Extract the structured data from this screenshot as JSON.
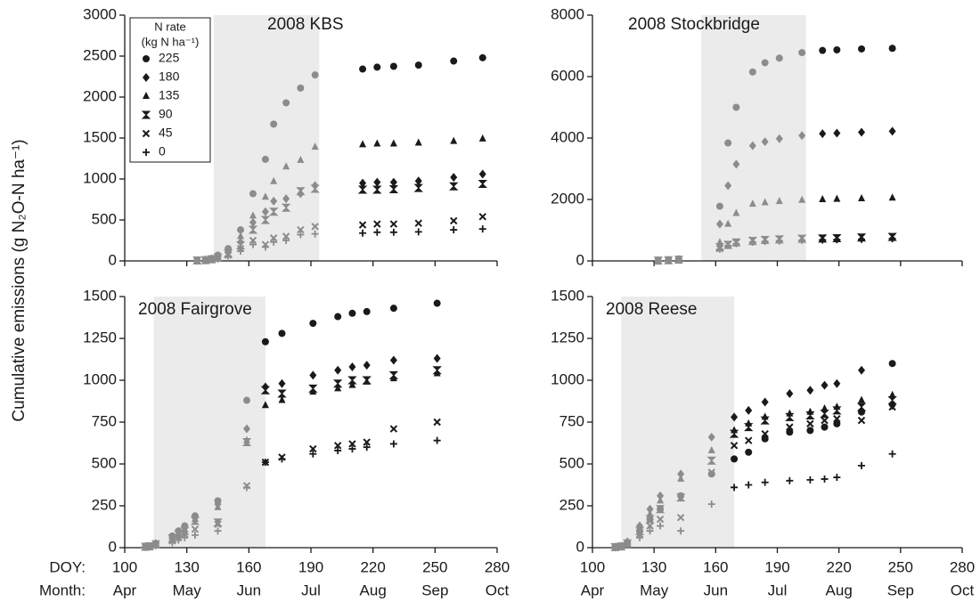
{
  "y_label": "Cumulative emissions (g N₂O-N ha⁻¹)",
  "row_labels": [
    "DOY:",
    "Month:"
  ],
  "month_labels": [
    "Apr",
    "May",
    "Jun",
    "Jul",
    "Aug",
    "Sep",
    "Oct"
  ],
  "legend": {
    "title": [
      "N rate",
      "(kg N ha⁻¹)"
    ],
    "names": [
      "225",
      "180",
      "135",
      "90",
      "45",
      "0"
    ],
    "markers": [
      "circle",
      "diamond",
      "triangle",
      "bowtie",
      "x",
      "plus"
    ]
  },
  "marker_color": "#1a1a1a",
  "shade_marker_color": "#8c8c8c",
  "shade_color": "#ebebeb",
  "chart_data": [
    {
      "type": "scatter",
      "title": "2008 KBS",
      "xlim": [
        100,
        280
      ],
      "xticks": [
        100,
        130,
        160,
        190,
        220,
        250,
        280
      ],
      "ylim": [
        0,
        3000
      ],
      "yticks": [
        0,
        500,
        1000,
        1500,
        2000,
        2500,
        3000
      ],
      "shade": [
        143,
        194
      ],
      "x": [
        135,
        139,
        142,
        145,
        150,
        156,
        162,
        168,
        172,
        178,
        185,
        192,
        215,
        222,
        230,
        242,
        259,
        273
      ],
      "series": [
        {
          "values": [
            5,
            15,
            30,
            70,
            150,
            380,
            820,
            1240,
            1670,
            1930,
            2110,
            2270,
            2342,
            2365,
            2375,
            2390,
            2440,
            2480
          ]
        },
        {
          "values": [
            5,
            10,
            25,
            50,
            110,
            230,
            470,
            600,
            730,
            760,
            820,
            920,
            950,
            960,
            960,
            975,
            1020,
            1060
          ]
        },
        {
          "values": [
            5,
            12,
            28,
            60,
            130,
            300,
            550,
            780,
            970,
            1150,
            1230,
            1390,
            1420,
            1430,
            1430,
            1440,
            1460,
            1490
          ]
        },
        {
          "values": [
            5,
            10,
            20,
            40,
            90,
            190,
            380,
            500,
            600,
            650,
            850,
            880,
            870,
            870,
            875,
            890,
            910,
            940
          ]
        },
        {
          "values": [
            5,
            8,
            15,
            30,
            70,
            150,
            250,
            200,
            280,
            300,
            380,
            420,
            440,
            450,
            450,
            460,
            490,
            540
          ]
        },
        {
          "values": [
            5,
            8,
            15,
            25,
            60,
            120,
            200,
            170,
            230,
            250,
            320,
            330,
            340,
            350,
            350,
            355,
            380,
            390
          ]
        }
      ]
    },
    {
      "type": "scatter",
      "title": "2008 Stockbridge",
      "xlim": [
        100,
        280
      ],
      "xticks": [
        100,
        130,
        160,
        190,
        220,
        250,
        280
      ],
      "ylim": [
        0,
        8000
      ],
      "yticks": [
        0,
        2000,
        4000,
        6000,
        8000
      ],
      "shade": [
        153,
        204
      ],
      "x": [
        132,
        137,
        142,
        162,
        166,
        170,
        178,
        184,
        191,
        202,
        212,
        219,
        231,
        246
      ],
      "series": [
        {
          "values": [
            10,
            30,
            60,
            1780,
            3840,
            5000,
            6150,
            6450,
            6600,
            6780,
            6850,
            6870,
            6900,
            6920
          ]
        },
        {
          "values": [
            10,
            25,
            50,
            1200,
            2450,
            3150,
            3750,
            3880,
            3980,
            4080,
            4140,
            4160,
            4190,
            4220
          ]
        },
        {
          "values": [
            10,
            25,
            50,
            600,
            1200,
            1550,
            1850,
            1900,
            1940,
            1980,
            2000,
            2010,
            2030,
            2050
          ]
        },
        {
          "values": [
            10,
            20,
            40,
            450,
            520,
            600,
            650,
            680,
            700,
            720,
            730,
            740,
            760,
            780
          ]
        },
        {
          "values": [
            8,
            20,
            35,
            400,
            550,
            600,
            680,
            700,
            720,
            740,
            750,
            760,
            780,
            800
          ]
        },
        {
          "values": [
            5,
            15,
            30,
            380,
            500,
            560,
            610,
            630,
            650,
            670,
            680,
            690,
            700,
            720
          ]
        }
      ]
    },
    {
      "type": "scatter",
      "title": "2008 Fairgrove",
      "xlim": [
        100,
        280
      ],
      "xticks": [
        100,
        130,
        160,
        190,
        220,
        250,
        280
      ],
      "ylim": [
        0,
        1500
      ],
      "yticks": [
        0,
        250,
        500,
        750,
        1000,
        1250,
        1500
      ],
      "shade": [
        114,
        168
      ],
      "x": [
        110,
        112,
        115,
        123,
        126,
        129,
        134,
        145,
        159,
        168,
        176,
        191,
        203,
        210,
        217,
        230,
        251
      ],
      "series": [
        {
          "values": [
            5,
            8,
            25,
            70,
            100,
            130,
            190,
            280,
            880,
            1230,
            1280,
            1340,
            1380,
            1400,
            1410,
            1430,
            1460
          ]
        },
        {
          "values": [
            5,
            8,
            25,
            65,
            95,
            120,
            180,
            260,
            710,
            960,
            980,
            1030,
            1060,
            1080,
            1090,
            1120,
            1130
          ]
        },
        {
          "values": [
            5,
            8,
            22,
            60,
            85,
            110,
            170,
            240,
            640,
            850,
            880,
            930,
            950,
            970,
            990,
            1010,
            1040
          ]
        },
        {
          "values": [
            5,
            8,
            20,
            55,
            80,
            100,
            160,
            150,
            630,
            940,
            920,
            950,
            980,
            1000,
            1000,
            1030,
            1060
          ]
        },
        {
          "values": [
            3,
            6,
            15,
            40,
            60,
            80,
            110,
            140,
            370,
            510,
            540,
            590,
            610,
            620,
            630,
            710,
            750
          ]
        },
        {
          "values": [
            2,
            5,
            12,
            30,
            45,
            60,
            75,
            100,
            360,
            510,
            530,
            560,
            580,
            590,
            600,
            620,
            640
          ]
        }
      ]
    },
    {
      "type": "scatter",
      "title": "2008 Reese",
      "xlim": [
        100,
        280
      ],
      "xticks": [
        100,
        130,
        160,
        190,
        220,
        250,
        280
      ],
      "ylim": [
        0,
        1500
      ],
      "yticks": [
        0,
        250,
        500,
        750,
        1000,
        1250,
        1500
      ],
      "shade": [
        114,
        169
      ],
      "x": [
        111,
        114,
        117,
        123,
        128,
        133,
        143,
        158,
        169,
        176,
        184,
        196,
        206,
        213,
        219,
        231,
        246
      ],
      "series": [
        {
          "values": [
            3,
            8,
            30,
            100,
            170,
            230,
            310,
            440,
            530,
            570,
            650,
            690,
            700,
            720,
            740,
            810,
            1100
          ]
        },
        {
          "values": [
            3,
            8,
            35,
            130,
            230,
            310,
            440,
            660,
            780,
            820,
            870,
            920,
            940,
            970,
            980,
            1060,
            850
          ]
        },
        {
          "values": [
            3,
            8,
            30,
            120,
            200,
            280,
            410,
            580,
            700,
            740,
            780,
            800,
            810,
            830,
            840,
            880,
            910
          ]
        },
        {
          "values": [
            3,
            7,
            25,
            100,
            170,
            230,
            300,
            520,
            680,
            720,
            760,
            780,
            790,
            800,
            820,
            840,
            880
          ]
        },
        {
          "values": [
            2,
            6,
            20,
            80,
            130,
            170,
            180,
            450,
            610,
            640,
            680,
            720,
            740,
            760,
            770,
            760,
            840
          ]
        },
        {
          "values": [
            2,
            5,
            15,
            60,
            100,
            130,
            100,
            260,
            360,
            375,
            390,
            400,
            405,
            410,
            420,
            490,
            560
          ]
        }
      ]
    }
  ]
}
